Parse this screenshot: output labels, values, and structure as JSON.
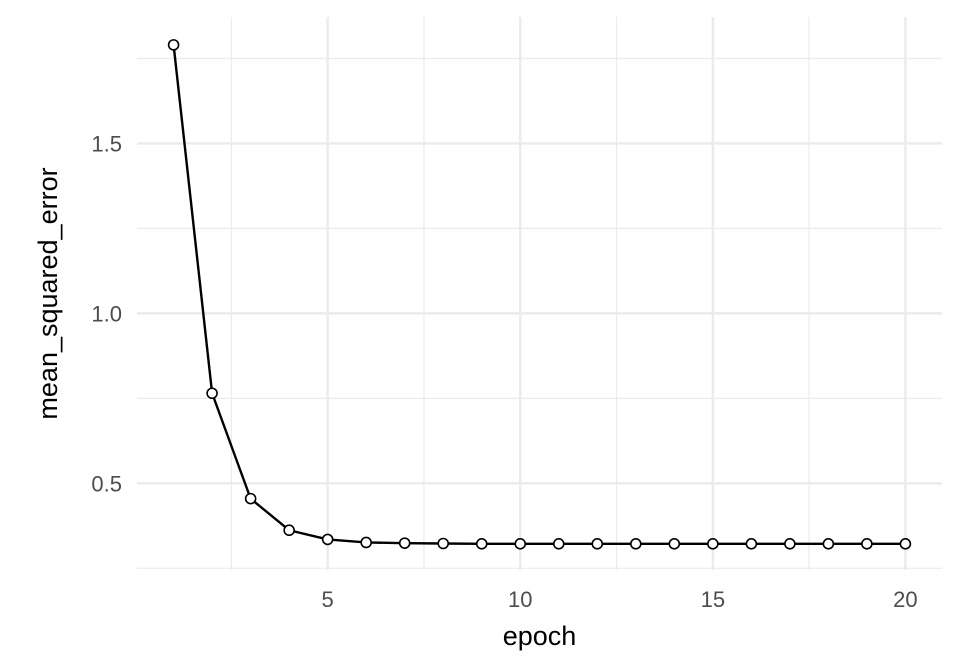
{
  "chart_data": {
    "type": "line",
    "xlabel": "epoch",
    "ylabel": "mean_squared_error",
    "xlim": [
      0.05,
      20.95
    ],
    "ylim": [
      0.245,
      1.872
    ],
    "x_ticks": [
      5,
      10,
      15,
      20
    ],
    "y_ticks": [
      0.5,
      1.0,
      1.5
    ],
    "x_tick_labels": [
      "5",
      "10",
      "15",
      "20"
    ],
    "y_tick_labels": [
      "0.5",
      "1.0",
      "1.5"
    ],
    "x_minor": [
      2.5,
      7.5,
      12.5,
      17.5
    ],
    "y_minor": [
      0.25,
      0.75,
      1.25,
      1.75
    ],
    "grid": true,
    "markers": "open-circle",
    "line_color": "#000000",
    "grid_color": "#ebebeb",
    "series": [
      {
        "x": [
          1,
          2,
          3,
          4,
          5,
          6,
          7,
          8,
          9,
          10,
          11,
          12,
          13,
          14,
          15,
          16,
          17,
          18,
          19,
          20
        ],
        "y": [
          1.79,
          0.765,
          0.455,
          0.362,
          0.335,
          0.326,
          0.324,
          0.323,
          0.322,
          0.322,
          0.322,
          0.322,
          0.322,
          0.322,
          0.322,
          0.322,
          0.322,
          0.322,
          0.322,
          0.322
        ]
      }
    ]
  }
}
